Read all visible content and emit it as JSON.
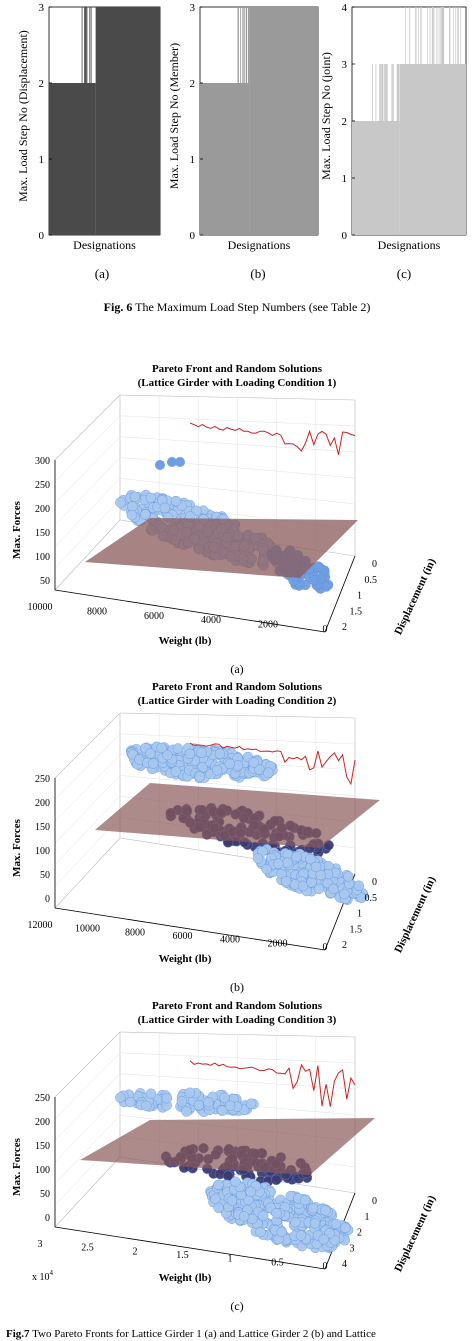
{
  "fig6": {
    "panels": [
      {
        "label": "(a)",
        "ylabel": "Max. Load Step No (Displacement)",
        "xlabel": "Designations",
        "yticks": [
          "0",
          "1",
          "2",
          "3"
        ],
        "ymax": 3,
        "fill": "#4a4a4a"
      },
      {
        "label": "(b)",
        "ylabel": "Max. Load Step No (Member)",
        "xlabel": "Designations",
        "yticks": [
          "0",
          "1",
          "2",
          "3"
        ],
        "ymax": 3,
        "fill": "#9a9a9a"
      },
      {
        "label": "(c)",
        "ylabel": "Max. Load Step No (joint)",
        "xlabel": "Designations",
        "yticks": [
          "0",
          "1",
          "2",
          "3",
          "4"
        ],
        "ymax": 4,
        "fill": "#c8c8c8"
      }
    ],
    "caption_bold": "Fig. 6",
    "caption_text": " The Maximum Load Step Numbers (see Table 2)"
  },
  "fig7": {
    "panels": [
      {
        "title1": "Pareto Front and Random Solutions",
        "title2": "(Lattice Girder with Loading Condition 1)",
        "zlabel": "Max. Forces",
        "xlabel": "Weight (lb)",
        "ylabel": "Displacement (in)",
        "zticks": [
          "50",
          "100",
          "150",
          "200",
          "250",
          "300"
        ],
        "xticks": [
          "10000",
          "8000",
          "6000",
          "4000",
          "2000",
          "0"
        ],
        "yticks": [
          "0",
          "0.5",
          "1",
          "1.5",
          "2"
        ],
        "exponent": "",
        "label": "(a)"
      },
      {
        "title1": "Pareto Front and Random Solutions",
        "title2": "(Lattice Girder with Loading Condition 2)",
        "zlabel": "Max. Forces",
        "xlabel": "Weight (lb)",
        "ylabel": "Displacement (in)",
        "zticks": [
          "0",
          "50",
          "100",
          "150",
          "200",
          "250"
        ],
        "xticks": [
          "12000",
          "10000",
          "8000",
          "6000",
          "4000",
          "2000",
          "0"
        ],
        "yticks": [
          "0",
          "0.5",
          "1",
          "1.5",
          "2"
        ],
        "exponent": "",
        "label": "(b)"
      },
      {
        "title1": "Pareto Front and Random Solutions",
        "title2": "(Lattice Girder with Loading Condition 3)",
        "zlabel": "Max. Forces",
        "xlabel": "Weight (lb)",
        "ylabel": "Displacement (in)",
        "zticks": [
          "0",
          "50",
          "100",
          "150",
          "200",
          "250"
        ],
        "xticks": [
          "3",
          "2.5",
          "2",
          "1.5",
          "1",
          "0.5",
          "0"
        ],
        "yticks": [
          "0",
          "1",
          "2",
          "3",
          "4"
        ],
        "exponent": "x 10",
        "exponent_sup": "4",
        "label": "(c)"
      }
    ],
    "caption_bold": "Fig.7",
    "caption_text": " Two Pareto Fronts for Lattice Girder 1 (a) and Lattice Girder 2 (b) and Lattice"
  },
  "colors": {
    "scatter_light": "#a8c8f0",
    "scatter_mid": "#6f9fe0",
    "scatter_dark": "#3e3a70",
    "plane": "#8a5a5a",
    "front": "#d02020"
  }
}
